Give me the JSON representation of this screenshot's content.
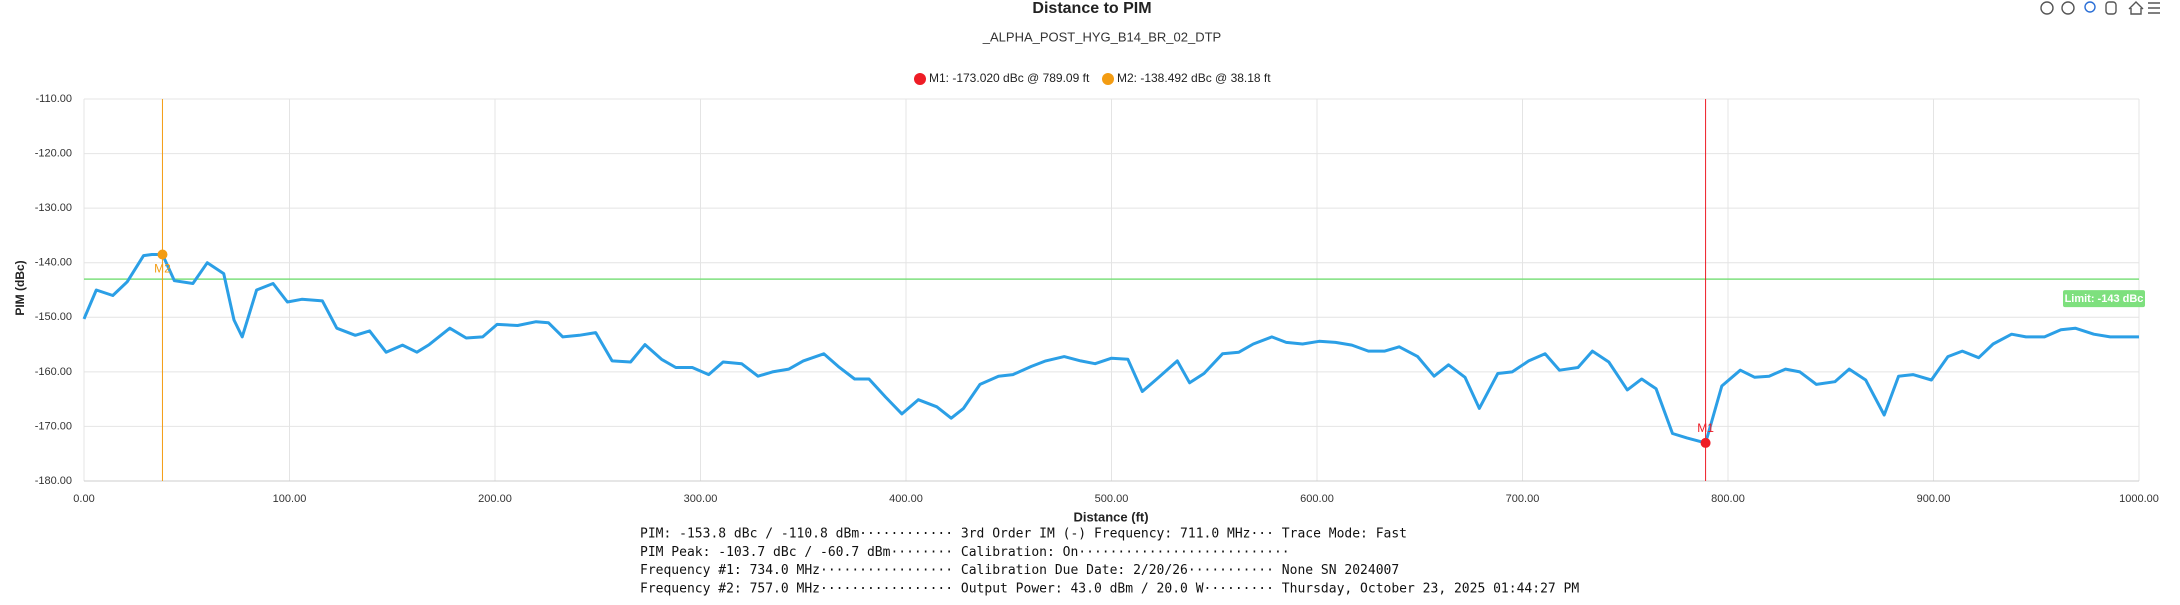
{
  "chart_data": {
    "type": "line",
    "title": "Distance to PIM",
    "subtitle": "_ALPHA_POST_HYG_B14_BR_02_DTP",
    "x_label": "Distance (ft)",
    "y_label": "PIM (dBc)",
    "xlim": [
      0,
      1000
    ],
    "ylim": [
      -180,
      -110
    ],
    "xticks": [
      {
        "value": 0,
        "label": "0.00"
      },
      {
        "value": 100,
        "label": "100.00"
      },
      {
        "value": 200,
        "label": "200.00"
      },
      {
        "value": 300,
        "label": "300.00"
      },
      {
        "value": 400,
        "label": "400.00"
      },
      {
        "value": 500,
        "label": "500.00"
      },
      {
        "value": 600,
        "label": "600.00"
      },
      {
        "value": 700,
        "label": "700.00"
      },
      {
        "value": 800,
        "label": "800.00"
      },
      {
        "value": 900,
        "label": "900.00"
      },
      {
        "value": 1000,
        "label": "1000.00"
      }
    ],
    "yticks": [
      {
        "value": -110,
        "label": "-110.00"
      },
      {
        "value": -120,
        "label": "-120.00"
      },
      {
        "value": -130,
        "label": "-130.00"
      },
      {
        "value": -140,
        "label": "-140.00"
      },
      {
        "value": -150,
        "label": "-150.00"
      },
      {
        "value": -160,
        "label": "-160.00"
      },
      {
        "value": -170,
        "label": "-170.00"
      },
      {
        "value": -180,
        "label": "-180.00"
      }
    ],
    "grid": true,
    "series": [
      {
        "color": "#2b9fe6",
        "x": [
          0,
          6,
          14,
          21,
          29,
          33,
          38.18,
          44,
          53,
          60,
          68,
          73,
          77,
          84,
          92,
          99,
          106,
          116,
          123,
          132,
          139,
          147,
          155,
          162,
          168,
          178,
          186,
          194,
          201,
          211,
          220,
          226,
          233,
          241,
          249,
          257,
          266,
          273,
          281,
          288,
          296,
          304,
          311,
          320,
          328,
          335,
          343,
          350,
          360,
          367,
          375,
          382,
          390,
          398,
          406,
          415,
          422,
          428,
          436,
          445,
          452,
          461,
          468,
          477,
          485,
          492,
          500,
          508,
          515,
          523,
          532,
          538,
          545,
          554,
          562,
          569,
          578,
          585,
          593,
          601,
          609,
          617,
          625,
          633,
          640,
          649,
          657,
          664,
          672,
          679,
          688,
          695,
          703,
          711,
          718,
          727,
          734,
          742,
          751,
          758,
          765,
          773,
          780,
          789.09,
          797,
          806,
          813,
          820,
          828,
          835,
          843,
          852,
          859,
          867,
          876,
          883,
          890,
          899,
          907,
          914,
          922,
          929,
          938,
          945,
          954,
          962,
          969,
          978,
          986,
          1000
        ],
        "values": [
          -150.3,
          -145,
          -146,
          -143.5,
          -138.7,
          -138.5,
          -138.492,
          -143.3,
          -143.8,
          -140,
          -142,
          -150.5,
          -153.6,
          -145,
          -143.8,
          -147.2,
          -146.7,
          -147,
          -152,
          -153.3,
          -152.5,
          -156.4,
          -155.1,
          -156.4,
          -155,
          -152,
          -153.8,
          -153.6,
          -151.3,
          -151.5,
          -150.8,
          -151,
          -153.6,
          -153.3,
          -152.8,
          -158,
          -158.2,
          -155,
          -157.7,
          -159.2,
          -159.2,
          -160.5,
          -158.2,
          -158.5,
          -160.8,
          -160,
          -159.5,
          -158,
          -156.7,
          -159,
          -161.3,
          -161.3,
          -164.6,
          -167.7,
          -165.1,
          -166.4,
          -168.5,
          -166.7,
          -162.3,
          -160.8,
          -160.5,
          -159,
          -158,
          -157.2,
          -158,
          -158.5,
          -157.5,
          -157.7,
          -163.6,
          -161,
          -158,
          -162,
          -160.3,
          -156.7,
          -156.4,
          -154.9,
          -153.6,
          -154.6,
          -154.9,
          -154.4,
          -154.6,
          -155.1,
          -156.2,
          -156.2,
          -155.4,
          -157.2,
          -160.8,
          -158.7,
          -161,
          -166.7,
          -160.3,
          -160,
          -158,
          -156.7,
          -159.7,
          -159.2,
          -156.2,
          -158.2,
          -163.3,
          -161.3,
          -163.1,
          -171.3,
          -172.1,
          -173.02,
          -162.6,
          -159.7,
          -161,
          -160.8,
          -159.5,
          -160,
          -162.3,
          -161.8,
          -159.5,
          -161.5,
          -167.9,
          -160.8,
          -160.5,
          -161.5,
          -157.2,
          -156.2,
          -157.4,
          -154.9,
          -153.1,
          -153.6,
          -153.6,
          -152.3,
          -152,
          -153.1,
          -153.6,
          -153.6
        ]
      }
    ],
    "limit": {
      "value": -143,
      "label": "Limit: -143 dBc",
      "color": "#7ee07e"
    },
    "markers": [
      {
        "name": "M1",
        "x": 789.09,
        "y": -173.02,
        "color": "#ee1c25",
        "legend": "M1: -173.020 dBc @ 789.09 ft"
      },
      {
        "name": "M2",
        "x": 38.18,
        "y": -138.492,
        "color": "#f39c12",
        "legend": "M2: -138.492 dBc @ 38.18 ft"
      }
    ],
    "info": [
      "PIM: -153.8 dBc / -110.8 dBm············ 3rd Order IM (-) Frequency: 711.0 MHz··· Trace Mode: Fast",
      "PIM Peak: -103.7 dBc / -60.7 dBm········ Calibration: On···························",
      "Frequency #1: 734.0 MHz················· Calibration Due Date: 2/20/26··········· None SN 2024007",
      "Frequency #2: 757.0 MHz················· Output Power: 43.0 dBm / 20.0 W········· Thursday, October 23, 2025 01:44:27 PM"
    ]
  }
}
